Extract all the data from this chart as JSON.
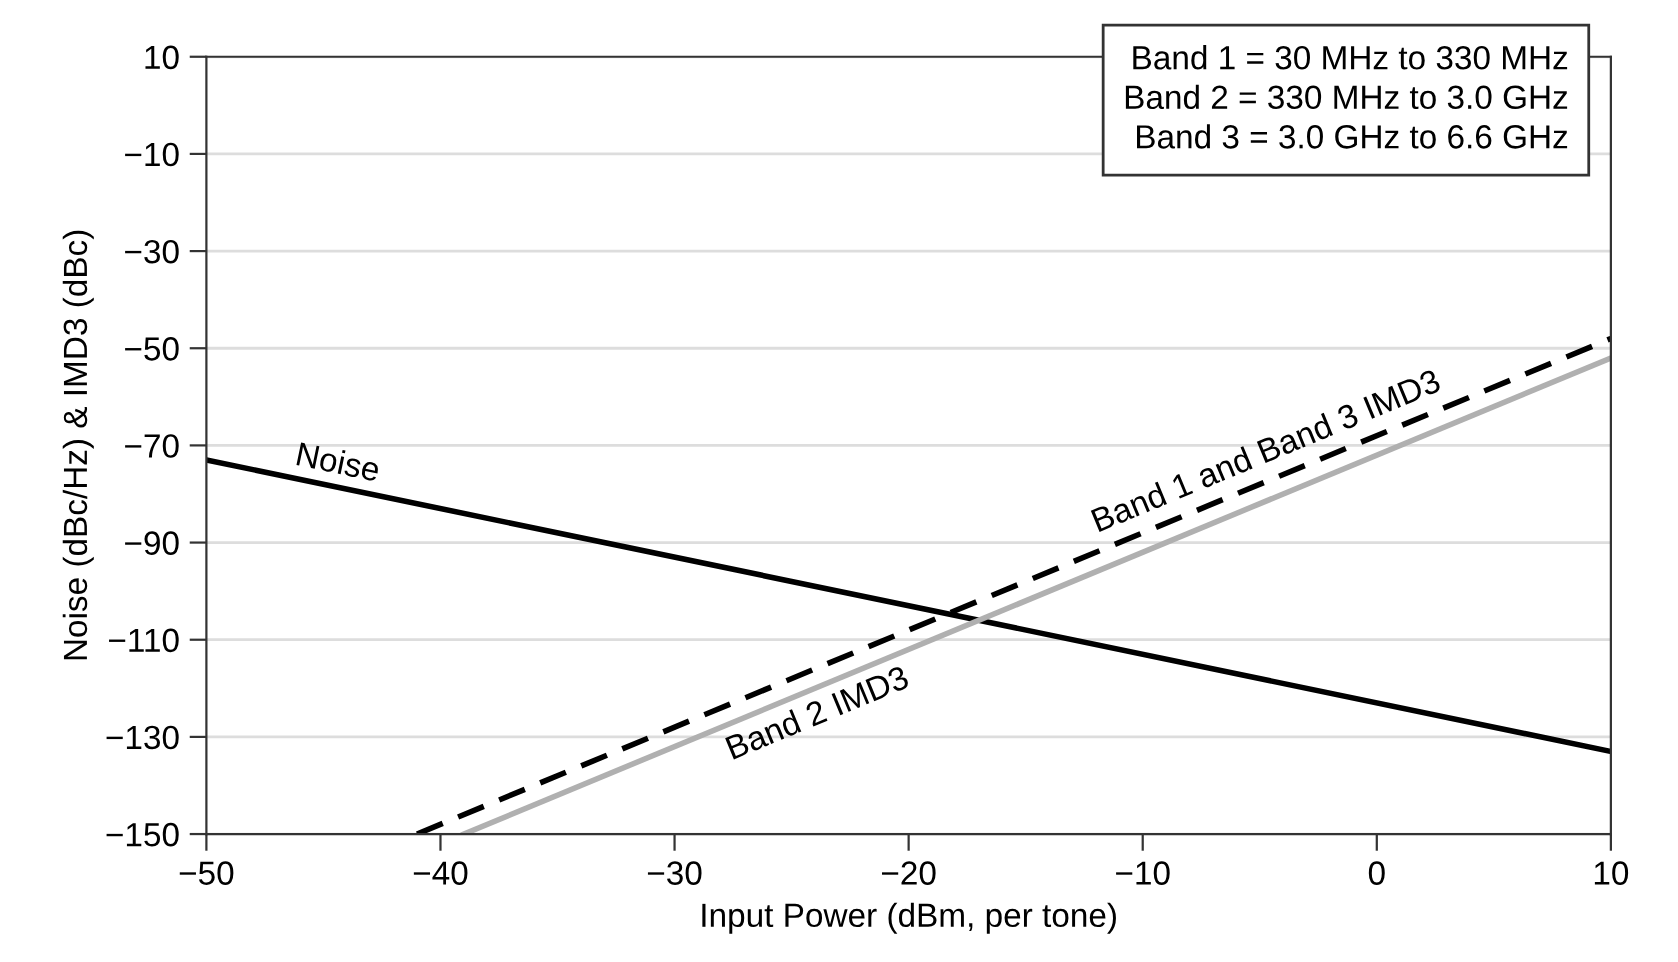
{
  "chart_data": {
    "type": "line",
    "xlabel": "Input Power (dBm, per tone)",
    "ylabel": "Noise (dBc/Hz) & IMD3 (dBc)",
    "series": [
      {
        "color": "#000000",
        "line_style": "solid",
        "x": [
          -50,
          10
        ],
        "values": [
          -73,
          -133
        ]
      },
      {
        "color": "#000000",
        "line_style": "dashed",
        "x": [
          -41,
          10
        ],
        "values": [
          -150,
          -48
        ]
      },
      {
        "color": "#b0b0b0",
        "line_style": "solid",
        "x": [
          -39,
          10
        ],
        "values": [
          -150,
          -52
        ]
      }
    ],
    "xlim": [
      -50,
      10
    ],
    "ylim": [
      -150,
      10
    ],
    "xticks": [
      {
        "value": -50,
        "label": "−50"
      },
      {
        "value": -40,
        "label": "−40"
      },
      {
        "value": -30,
        "label": "−30"
      },
      {
        "value": -20,
        "label": "−20"
      },
      {
        "value": -10,
        "label": "−10"
      },
      0,
      10
    ],
    "yticks": [
      10,
      {
        "value": -10,
        "label": "−10"
      },
      {
        "value": -30,
        "label": "−30"
      },
      {
        "value": -50,
        "label": "−50"
      },
      {
        "value": -70,
        "label": "−70"
      },
      {
        "value": -90,
        "label": "−90"
      },
      {
        "value": -110,
        "label": "−110"
      },
      {
        "value": -130,
        "label": "−130"
      },
      {
        "value": -150,
        "label": "−150"
      }
    ],
    "grid": "y",
    "legend": false,
    "marker": "none",
    "annotations": [
      "Noise",
      "Band 1 and Band 3 IMD3",
      "Band 2 IMD3",
      "Band 1 = 30 MHz to 330 MHz\nBand 2 = 330 MHz to 3.0 GHz\nBand 3 = 3.0 GHz to 6.6 GHz"
    ]
  }
}
